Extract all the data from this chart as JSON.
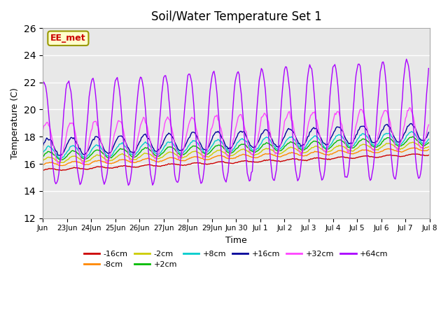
{
  "title": "Soil/Water Temperature Set 1",
  "xlabel": "Time",
  "ylabel": "Temperature (C)",
  "ylim": [
    12,
    26
  ],
  "yticks": [
    12,
    14,
    16,
    18,
    20,
    22,
    24,
    26
  ],
  "bg_color": "#e8e8e8",
  "fig_color": "#ffffff",
  "annotation_text": "EE_met",
  "annotation_color": "#cc0000",
  "annotation_bg": "#ffffcc",
  "annotation_border": "#999900",
  "legend_entries": [
    "-16cm",
    "-8cm",
    "-2cm",
    "+2cm",
    "+8cm",
    "+16cm",
    "+32cm",
    "+64cm"
  ],
  "line_colors": [
    "#cc0000",
    "#ff8800",
    "#cccc00",
    "#00bb00",
    "#00cccc",
    "#000099",
    "#ff44ff",
    "#aa00ff"
  ],
  "grid_color": "#ffffff",
  "grid_alpha": 1.0,
  "tick_labels": [
    "Jun",
    "23Jun",
    "24Jun",
    "25Jun",
    "26Jun",
    "27Jun",
    "28Jun",
    "29Jun",
    "Jun 30",
    "Jul 1",
    "Jul 2",
    "Jul 3",
    "Jul 4",
    "Jul 5",
    "Jul 6",
    "Jul 7",
    "Jul 8"
  ]
}
